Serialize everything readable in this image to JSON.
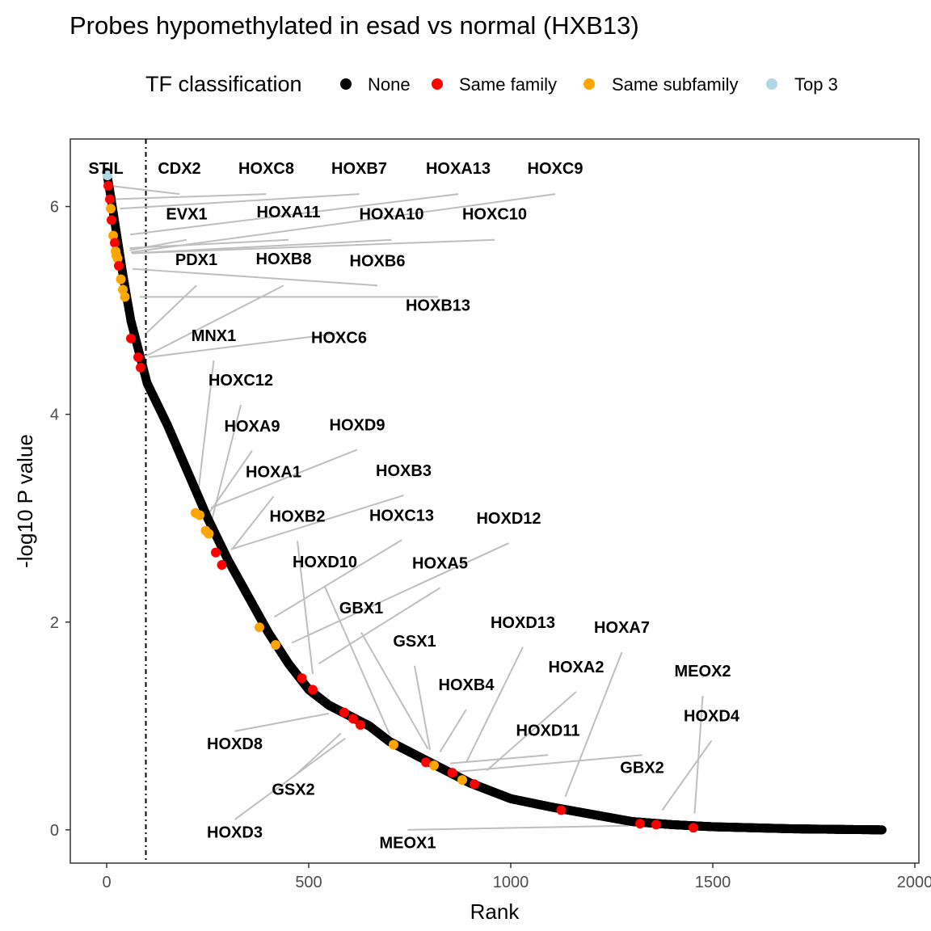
{
  "chart_data": {
    "type": "scatter",
    "title": "Probes hypomethylated in esad vs normal (HXB13)",
    "xlabel": "Rank",
    "ylabel": "-log10 P value",
    "xlim": [
      -90,
      2010
    ],
    "ylim": [
      -0.32,
      6.65
    ],
    "xticks": [
      0,
      500,
      1000,
      1500,
      2000
    ],
    "yticks": [
      0,
      2,
      4,
      6
    ],
    "grid": false,
    "legend": {
      "title": "TF classification",
      "placement": "top",
      "entries": [
        {
          "name": "None",
          "color": "#000000"
        },
        {
          "name": "Same family",
          "color": "#ff0000"
        },
        {
          "name": "Same subfamily",
          "color": "#ffa500"
        },
        {
          "name": "Top 3",
          "color": "#add8e6"
        }
      ]
    },
    "cutoff_rank": 97,
    "n_points": 1920,
    "curve_knots": [
      [
        0,
        6.33
      ],
      [
        10,
        6.1
      ],
      [
        20,
        5.85
      ],
      [
        30,
        5.6
      ],
      [
        40,
        5.35
      ],
      [
        50,
        5.12
      ],
      [
        60,
        4.9
      ],
      [
        80,
        4.6
      ],
      [
        100,
        4.3
      ],
      [
        150,
        3.9
      ],
      [
        200,
        3.45
      ],
      [
        250,
        3.0
      ],
      [
        300,
        2.6
      ],
      [
        350,
        2.25
      ],
      [
        400,
        1.9
      ],
      [
        450,
        1.6
      ],
      [
        500,
        1.35
      ],
      [
        550,
        1.2
      ],
      [
        600,
        1.1
      ],
      [
        650,
        1.0
      ],
      [
        700,
        0.85
      ],
      [
        800,
        0.65
      ],
      [
        900,
        0.45
      ],
      [
        1000,
        0.3
      ],
      [
        1100,
        0.22
      ],
      [
        1200,
        0.15
      ],
      [
        1300,
        0.08
      ],
      [
        1400,
        0.05
      ],
      [
        1500,
        0.03
      ],
      [
        1600,
        0.02
      ],
      [
        1700,
        0.01
      ],
      [
        1920,
        0.0
      ]
    ],
    "highlighted_points": [
      {
        "label": "STIL",
        "x": 2,
        "y": 6.3,
        "class": "Top 3",
        "lx": -2,
        "ly": 6.37
      },
      {
        "label": "CDX2",
        "x": 4,
        "y": 6.2,
        "class": "Same family",
        "lx": 180,
        "ly": 6.37
      },
      {
        "label": "HOXC8",
        "x": 8,
        "y": 6.07,
        "class": "Same family",
        "lx": 395,
        "ly": 6.37
      },
      {
        "label": "HOXB7",
        "x": 10,
        "y": 5.98,
        "class": "Same subfamily",
        "lx": 625,
        "ly": 6.37
      },
      {
        "label": "HOXA13",
        "x": 12,
        "y": 5.87,
        "class": "Same family",
        "lx": 870,
        "ly": 6.37
      },
      {
        "label": "HOXC9",
        "x": 16,
        "y": 5.72,
        "class": "Same subfamily",
        "lx": 1110,
        "ly": 6.37
      },
      {
        "label": "EVX1",
        "x": 20,
        "y": 5.65,
        "class": "Same family",
        "lx": 198,
        "ly": 5.93
      },
      {
        "label": "HOXA11",
        "x": 22,
        "y": 5.57,
        "class": "Same subfamily",
        "lx": 450,
        "ly": 5.95
      },
      {
        "label": "HOXA10",
        "x": 24,
        "y": 5.53,
        "class": "Same subfamily",
        "lx": 705,
        "ly": 5.93
      },
      {
        "label": "HOXC10",
        "x": 27,
        "y": 5.5,
        "class": "Same subfamily",
        "lx": 960,
        "ly": 5.93
      },
      {
        "label": "PDX1",
        "x": 30,
        "y": 5.43,
        "class": "Same family",
        "lx": 222,
        "ly": 5.49
      },
      {
        "label": "HOXB8",
        "x": 35,
        "y": 5.3,
        "class": "Same subfamily",
        "lx": 438,
        "ly": 5.5
      },
      {
        "label": "HOXB6",
        "x": 40,
        "y": 5.2,
        "class": "Same subfamily",
        "lx": 670,
        "ly": 5.48
      },
      {
        "label": "HOXB13",
        "x": 45,
        "y": 5.13,
        "class": "Same subfamily",
        "lx": 820,
        "ly": 5.05
      },
      {
        "label": "MNX1",
        "x": 60,
        "y": 4.73,
        "class": "Same family",
        "lx": 265,
        "ly": 4.76
      },
      {
        "label": "HOXC6",
        "x": 78,
        "y": 4.55,
        "class": "Same family",
        "lx": 575,
        "ly": 4.74
      },
      {
        "label": "HOXC12",
        "x": 84,
        "y": 4.45,
        "class": "Same family",
        "lx": 332,
        "ly": 4.33
      },
      {
        "label": "HOXA9",
        "x": 220,
        "y": 3.05,
        "class": "Same subfamily",
        "lx": 360,
        "ly": 3.89
      },
      {
        "label": "HOXD9",
        "x": 230,
        "y": 3.03,
        "class": "Same subfamily",
        "lx": 620,
        "ly": 3.9
      },
      {
        "label": "HOXA1",
        "x": 245,
        "y": 2.88,
        "class": "Same subfamily",
        "lx": 413,
        "ly": 3.45
      },
      {
        "label": "HOXB3",
        "x": 253,
        "y": 2.85,
        "class": "Same subfamily",
        "lx": 735,
        "ly": 3.46
      },
      {
        "label": "HOXB2",
        "x": 270,
        "y": 2.67,
        "class": "Same family",
        "lx": 472,
        "ly": 3.02
      },
      {
        "label": "HOXC13",
        "x": 285,
        "y": 2.55,
        "class": "Same family",
        "lx": 730,
        "ly": 3.03
      },
      {
        "label": "HOXD12",
        "x": 378,
        "y": 1.95,
        "class": "Same subfamily",
        "lx": 995,
        "ly": 3.0
      },
      {
        "label": "HOXD10",
        "x": 418,
        "y": 1.78,
        "class": "Same subfamily",
        "lx": 540,
        "ly": 2.58
      },
      {
        "label": "HOXA5",
        "x": 483,
        "y": 1.46,
        "class": "Same family",
        "lx": 825,
        "ly": 2.57
      },
      {
        "label": "GBX1",
        "x": 510,
        "y": 1.35,
        "class": "Same family",
        "lx": 630,
        "ly": 2.14
      },
      {
        "label": "HOXD13",
        "x": 588,
        "y": 1.13,
        "class": "Same family",
        "lx": 1030,
        "ly": 2.0
      },
      {
        "label": "GSX1",
        "x": 610,
        "y": 1.07,
        "class": "Same family",
        "lx": 762,
        "ly": 1.82
      },
      {
        "label": "HOXA7",
        "x": 628,
        "y": 1.01,
        "class": "Same family",
        "lx": 1275,
        "ly": 1.95
      },
      {
        "label": "HOXA2",
        "x": 710,
        "y": 0.82,
        "class": "Same subfamily",
        "lx": 1162,
        "ly": 1.57
      },
      {
        "label": "MEOX2",
        "x": 790,
        "y": 0.65,
        "class": "Same family",
        "lx": 1475,
        "ly": 1.53
      },
      {
        "label": "HOXB4",
        "x": 810,
        "y": 0.62,
        "class": "Same subfamily",
        "lx": 890,
        "ly": 1.4
      },
      {
        "label": "HOXD4",
        "x": 855,
        "y": 0.55,
        "class": "Same family",
        "lx": 1497,
        "ly": 1.1
      },
      {
        "label": "HOXD11",
        "x": 880,
        "y": 0.48,
        "class": "Same subfamily",
        "lx": 1092,
        "ly": 0.96
      },
      {
        "label": "HOXD8",
        "x": 910,
        "y": 0.44,
        "class": "Same family",
        "lx": 317,
        "ly": 0.83
      },
      {
        "label": "GBX2",
        "x": 1125,
        "y": 0.19,
        "class": "Same family",
        "lx": 1325,
        "ly": 0.6
      },
      {
        "label": "GSX2",
        "x": 1320,
        "y": 0.06,
        "class": "Same family",
        "lx": 462,
        "ly": 0.39
      },
      {
        "label": "HOXD3",
        "x": 1360,
        "y": 0.05,
        "class": "Same family",
        "lx": 317,
        "ly": -0.02
      },
      {
        "label": "MEOX1",
        "x": 1452,
        "y": 0.02,
        "class": "Same family",
        "lx": 745,
        "ly": -0.12
      }
    ],
    "leader_lines": [
      [
        180,
        6.12,
        8,
        6.2
      ],
      [
        395,
        6.12,
        17,
        6.07
      ],
      [
        625,
        6.12,
        33,
        5.98
      ],
      [
        870,
        6.12,
        58,
        5.73
      ],
      [
        1110,
        6.12,
        60,
        5.56
      ],
      [
        198,
        5.68,
        57,
        5.58
      ],
      [
        450,
        5.68,
        57,
        5.6
      ],
      [
        705,
        5.68,
        62,
        5.55
      ],
      [
        960,
        5.68,
        66,
        5.55
      ],
      [
        222,
        5.24,
        98,
        4.78
      ],
      [
        438,
        5.24,
        97,
        4.56
      ],
      [
        670,
        5.24,
        64,
        5.4
      ],
      [
        820,
        5.13,
        82,
        5.13
      ],
      [
        265,
        4.52,
        225,
        3.2
      ],
      [
        575,
        4.78,
        104,
        4.55
      ],
      [
        332,
        4.09,
        260,
        2.98
      ],
      [
        360,
        3.65,
        255,
        3.06
      ],
      [
        620,
        3.66,
        258,
        3.1
      ],
      [
        413,
        3.21,
        310,
        2.7
      ],
      [
        735,
        3.22,
        307,
        2.7
      ],
      [
        472,
        2.78,
        510,
        1.5
      ],
      [
        730,
        2.79,
        415,
        2.05
      ],
      [
        995,
        2.76,
        458,
        1.8
      ],
      [
        540,
        2.34,
        700,
        0.92
      ],
      [
        825,
        2.33,
        525,
        1.6
      ],
      [
        630,
        1.9,
        795,
        0.78
      ],
      [
        1030,
        1.76,
        890,
        0.65
      ],
      [
        762,
        1.58,
        800,
        0.77
      ],
      [
        1275,
        1.71,
        1135,
        0.32
      ],
      [
        1162,
        1.33,
        940,
        0.57
      ],
      [
        1475,
        1.29,
        1455,
        0.16
      ],
      [
        890,
        1.16,
        825,
        0.75
      ],
      [
        1497,
        0.86,
        1375,
        0.19
      ],
      [
        1092,
        0.72,
        850,
        0.64
      ],
      [
        317,
        0.95,
        550,
        1.12
      ],
      [
        1325,
        0.72,
        840,
        0.55
      ],
      [
        462,
        0.51,
        580,
        0.93
      ],
      [
        317,
        0.1,
        590,
        0.88
      ],
      [
        745,
        0.0,
        1290,
        0.04
      ]
    ]
  }
}
